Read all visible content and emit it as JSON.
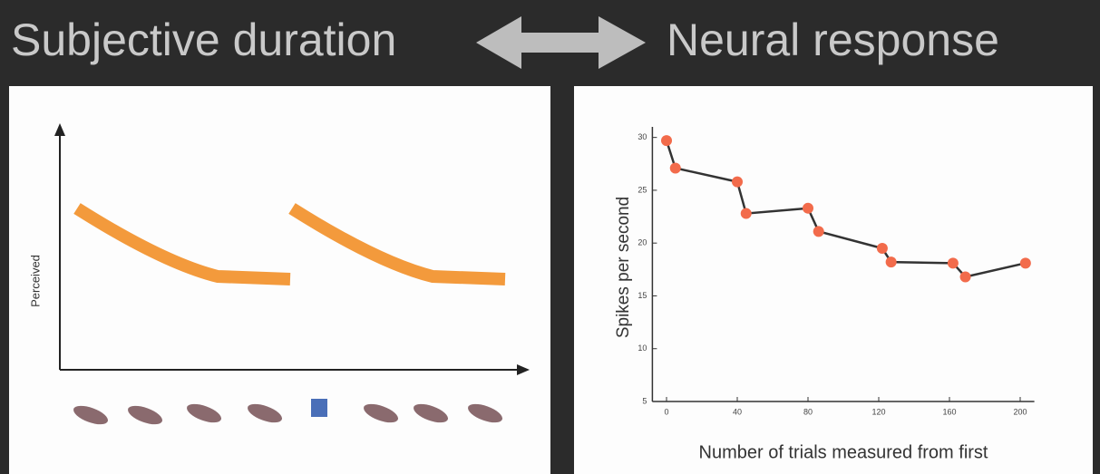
{
  "header": {
    "left": "Subjective duration",
    "right": "Neural response"
  },
  "left_panel": {
    "ylabel": "Perceived"
  },
  "chart_data": {
    "type": "line",
    "xlabel": "Number of trials measured from first",
    "ylabel": "Spikes per second",
    "x": [
      0,
      5,
      40,
      45,
      80,
      86,
      122,
      127,
      162,
      169,
      203
    ],
    "series": [
      {
        "color": "#f26b4b",
        "values": [
          29.7,
          27.1,
          25.8,
          22.8,
          23.3,
          21.1,
          19.5,
          18.2,
          18.1,
          16.8,
          18.1
        ]
      }
    ],
    "xlim": [
      -8,
      208
    ],
    "xticks": [
      0,
      40,
      80,
      120,
      160,
      200
    ],
    "ylim": [
      5,
      31
    ],
    "yticks": [
      5,
      10,
      15,
      20,
      25,
      30
    ]
  }
}
